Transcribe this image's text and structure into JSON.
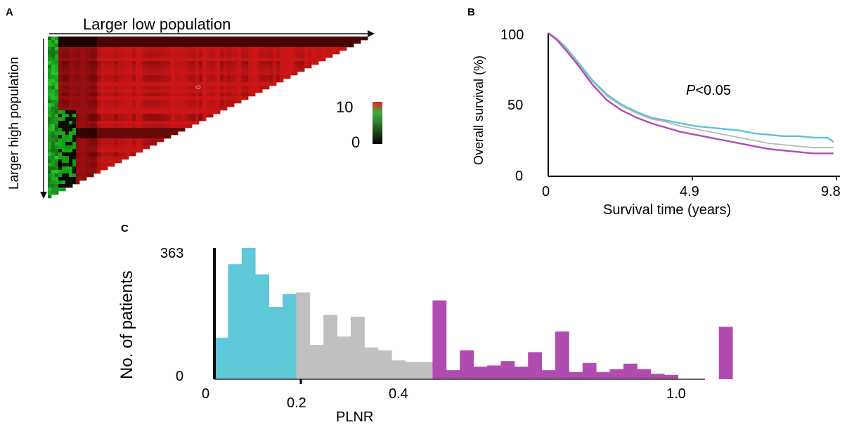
{
  "panel_labels": [
    "A",
    "B",
    "C"
  ],
  "chart_data": [
    {
      "type": "heatmap",
      "panel": "A",
      "xlabel": "Larger low population",
      "ylabel": "Larger high population",
      "colorbar": {
        "max_label": "10",
        "min_label": "0",
        "colors": [
          "#000000",
          "#3c9d3c",
          "#e02020"
        ]
      }
    },
    {
      "type": "line",
      "panel": "B",
      "xlabel": "Survival time (years)",
      "ylabel": "Overall survival (%)",
      "annotation": {
        "italic": "P",
        "rest": "<0.05"
      },
      "x_ticks": [
        "0",
        "4.9",
        "9.8"
      ],
      "y_ticks": [
        "0",
        "50",
        "100"
      ],
      "xlim": [
        0,
        9.8
      ],
      "ylim": [
        0,
        100
      ],
      "series": [
        {
          "color": "#5bc4d6",
          "x": [
            0,
            0.3,
            0.6,
            1,
            1.5,
            2,
            2.5,
            3,
            3.5,
            4,
            4.5,
            5,
            5.5,
            6,
            6.5,
            7,
            7.5,
            8,
            8.5,
            9,
            9.5,
            9.7
          ],
          "y": [
            100,
            96,
            90,
            80,
            67,
            57,
            50,
            45,
            41,
            39,
            37,
            35,
            34,
            33,
            32,
            30,
            29,
            28,
            28,
            27,
            27,
            24
          ]
        },
        {
          "color": "#b8b8b8",
          "x": [
            0,
            0.3,
            0.6,
            1,
            1.5,
            2,
            2.5,
            3,
            3.5,
            4,
            4.5,
            5,
            5.5,
            6,
            6.5,
            7,
            7.5,
            8,
            8.5,
            9,
            9.5,
            9.7
          ],
          "y": [
            100,
            96,
            89,
            79,
            66,
            56,
            49,
            44,
            40,
            38,
            35,
            33,
            31,
            29,
            27,
            25,
            23,
            22,
            21,
            20,
            20,
            20
          ]
        },
        {
          "color": "#b04cb0",
          "x": [
            0,
            0.3,
            0.6,
            1,
            1.5,
            2,
            2.5,
            3,
            3.5,
            4,
            4.5,
            5,
            5.5,
            6,
            6.5,
            7,
            7.5,
            8,
            8.5,
            9,
            9.5,
            9.7
          ],
          "y": [
            100,
            95,
            88,
            78,
            64,
            53,
            46,
            41,
            37,
            34,
            31,
            29,
            27,
            25,
            23,
            21,
            19,
            18,
            17,
            16,
            16,
            16
          ]
        }
      ]
    },
    {
      "type": "bar",
      "panel": "C",
      "xlabel": "PLNR",
      "ylabel": "No. of patients",
      "x_ticks": [
        "0",
        "0.2",
        "0.4",
        "1.0"
      ],
      "y_ticks": [
        "0",
        "363"
      ],
      "ylim": [
        0,
        363
      ],
      "bin_width": 0.02857,
      "values": [
        115,
        318,
        363,
        290,
        200,
        235,
        240,
        95,
        178,
        118,
        173,
        88,
        80,
        52,
        48,
        48,
        218,
        25,
        80,
        35,
        38,
        50,
        35,
        75,
        25,
        132,
        20,
        45,
        20,
        28,
        43,
        28,
        15,
        12,
        0,
        0,
        0,
        145
      ],
      "group_colors": {
        "low": "#5ec8d8",
        "mid": "#c0c0c0",
        "high": "#b04cb0"
      },
      "group_counts": [
        6,
        10,
        22
      ]
    }
  ]
}
